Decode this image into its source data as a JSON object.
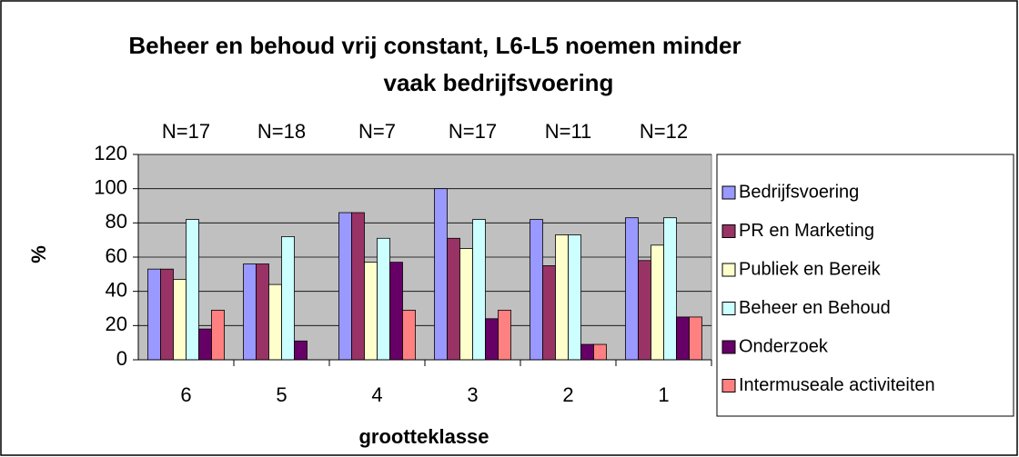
{
  "chart_data": {
    "type": "bar",
    "title": "Beheer en behoud vrij constant, L6-L5 noemen minder",
    "subtitle": "vaak bedrijfsvoering",
    "x_label": "grootteklasse",
    "y_label": "%",
    "categories": [
      "6",
      "5",
      "4",
      "3",
      "2",
      "1"
    ],
    "annotations": [
      "N=17",
      "N=18",
      "N=7",
      "N=17",
      "N=11",
      "N=12"
    ],
    "series": [
      {
        "name": "Bedrijfsvoering",
        "color": "#9999FF",
        "values": [
          53,
          56,
          86,
          100,
          82,
          83
        ]
      },
      {
        "name": "PR en Marketing",
        "color": "#993366",
        "values": [
          53,
          56,
          86,
          71,
          55,
          58
        ]
      },
      {
        "name": "Publiek en Bereik",
        "color": "#FFFFCC",
        "values": [
          47,
          44,
          57,
          65,
          73,
          67
        ]
      },
      {
        "name": "Beheer en Behoud",
        "color": "#CCFFFF",
        "values": [
          82,
          72,
          71,
          82,
          73,
          83
        ]
      },
      {
        "name": "Onderzoek",
        "color": "#660066",
        "values": [
          18,
          11,
          57,
          24,
          9,
          25
        ]
      },
      {
        "name": "Intermuseale activiteiten",
        "color": "#FF8080",
        "values": [
          29,
          0,
          29,
          29,
          9,
          25
        ]
      }
    ],
    "ylim": [
      0,
      120
    ],
    "yticks": [
      0,
      20,
      40,
      60,
      80,
      100,
      120
    ],
    "grid": true,
    "plot_background": "#C0C0C0",
    "legend": "right"
  }
}
